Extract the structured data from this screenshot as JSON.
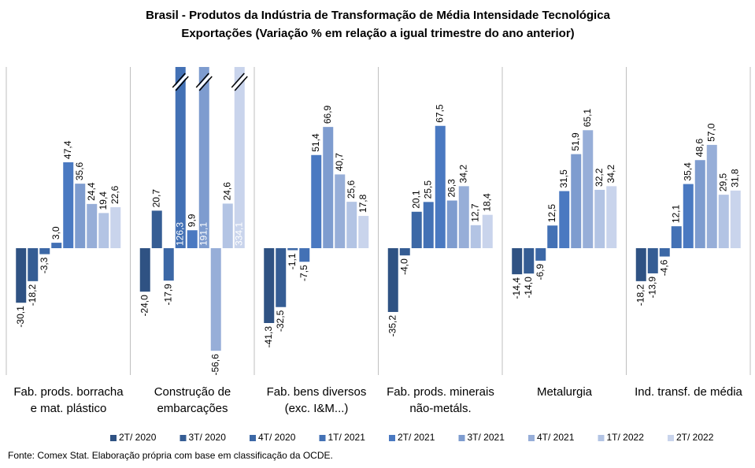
{
  "chart_data": {
    "type": "bar",
    "title": "Brasil - Produtos da Indústria de Transformação de Média Intensidade Tecnológica",
    "subtitle": "Exportações (Variação % em relação a igual trimestre do ano anterior)",
    "source": "Fonte: Comex Stat. Elaboração própria com base em classificação da OCDE.",
    "categories": [
      "Fab. prods. borracha\ne mat. plástico",
      "Construção de\nembarcações",
      "Fab. bens diversos\n(exc. I&M...)",
      "Fab. prods. minerais\nnão-metáls.",
      "Metalurgia",
      "Ind. transf. de média"
    ],
    "ylim": [
      -70,
      100
    ],
    "legend": "bottom",
    "series": [
      {
        "name": "2T/ 2020",
        "color": "#2f5283",
        "values": [
          -30.1,
          -24.0,
          -41.3,
          -35.2,
          -14.4,
          -18.2
        ],
        "value_labels": [
          "-30,1",
          "-24,0",
          "-41,3",
          "-35,2",
          "-14,4",
          "-18,2"
        ]
      },
      {
        "name": "3T/ 2020",
        "color": "#355d94",
        "values": [
          -18.2,
          20.7,
          -32.5,
          -4.0,
          -14.0,
          -13.9
        ],
        "value_labels": [
          "-18,2",
          "20,7",
          "-32,5",
          "-4,0",
          "-14,0",
          "-13,9"
        ]
      },
      {
        "name": "4T/ 2020",
        "color": "#3c68a6",
        "values": [
          -3.3,
          -17.9,
          -1.1,
          20.1,
          -6.9,
          -4.6
        ],
        "value_labels": [
          "-3,3",
          "-17,9",
          "-1,1",
          "20,1",
          "-6,9",
          "-4,6"
        ]
      },
      {
        "name": "1T/ 2021",
        "color": "#4371b5",
        "values": [
          3.0,
          126.3,
          -7.5,
          25.5,
          12.5,
          12.1
        ],
        "value_labels": [
          "3,0",
          "126,3",
          "-7,5",
          "25,5",
          "12,5",
          "12,1"
        ]
      },
      {
        "name": "2T/ 2021",
        "color": "#4a79c1",
        "values": [
          47.4,
          9.9,
          51.4,
          67.5,
          31.5,
          35.4
        ],
        "value_labels": [
          "47,4",
          "9,9",
          "51,4",
          "67,5",
          "31,5",
          "35,4"
        ]
      },
      {
        "name": "3T/ 2021",
        "color": "#7e9ccf",
        "values": [
          35.6,
          191.1,
          66.9,
          26.3,
          51.9,
          48.6
        ],
        "value_labels": [
          "35,6",
          "191,1",
          "66,9",
          "26,3",
          "51,9",
          "48,6"
        ]
      },
      {
        "name": "4T/ 2021",
        "color": "#97aed8",
        "values": [
          24.4,
          -56.6,
          40.7,
          34.2,
          65.1,
          57.0
        ],
        "value_labels": [
          "24,4",
          "-56,6",
          "40,7",
          "34,2",
          "65,1",
          "57,0"
        ]
      },
      {
        "name": "1T/ 2022",
        "color": "#b3c4e4",
        "values": [
          19.4,
          24.6,
          25.6,
          12.7,
          32.2,
          29.5
        ],
        "value_labels": [
          "19,4",
          "24,6",
          "25,6",
          "12,7",
          "32,2",
          "29,5"
        ]
      },
      {
        "name": "2T/ 2022",
        "color": "#c9d4ec",
        "values": [
          22.6,
          334.1,
          17.8,
          18.4,
          34.2,
          31.8
        ],
        "value_labels": [
          "22,6",
          "334,1",
          "17,8",
          "18,4",
          "34,2",
          "31,8"
        ]
      }
    ]
  }
}
